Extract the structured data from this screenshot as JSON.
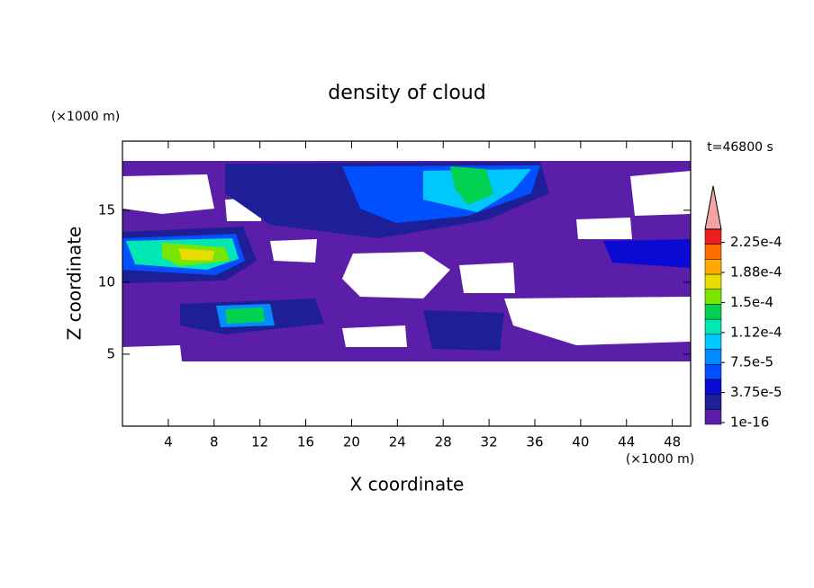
{
  "chart_data": {
    "type": "contour",
    "title": "density of cloud",
    "x_label": "X coordinate",
    "y_label": "Z coordinate",
    "x_unit": "(×1000 m)",
    "y_unit": "(×1000 m)",
    "annotation": "t=46800 s",
    "xlim": [
      0,
      49.6
    ],
    "ylim": [
      0,
      19.8
    ],
    "xticks": [
      4,
      8,
      12,
      16,
      20,
      24,
      28,
      32,
      36,
      40,
      44,
      48
    ],
    "yticks": [
      5,
      10,
      15
    ],
    "colorbar": {
      "levels": [
        1e-16,
        1.875e-05,
        3.75e-05,
        5.625e-05,
        7.5e-05,
        9.375e-05,
        0.0001125,
        0.00013125,
        0.00015,
        0.00016875,
        0.0001875,
        0.00020625,
        0.000225
      ],
      "colors": [
        "#5b1ea8",
        "#1e1e96",
        "#0a0ad2",
        "#0050ff",
        "#008cff",
        "#00c8ff",
        "#00e6b4",
        "#00d250",
        "#78e600",
        "#e6dc00",
        "#ffaa00",
        "#ff6e00",
        "#f01e1e"
      ],
      "extend_color": "#f4a4a4",
      "ticks": [
        {
          "value": 1e-16,
          "label": "1e-16"
        },
        {
          "value": 3.75e-05,
          "label": "3.75e-5"
        },
        {
          "value": 7.5e-05,
          "label": "7.5e-5"
        },
        {
          "value": 0.0001125,
          "label": "1.12e-4"
        },
        {
          "value": 0.00015,
          "label": "1.5e-4"
        },
        {
          "value": 0.0001875,
          "label": "1.88e-4"
        },
        {
          "value": 0.000225,
          "label": "2.25e-4"
        }
      ]
    }
  }
}
